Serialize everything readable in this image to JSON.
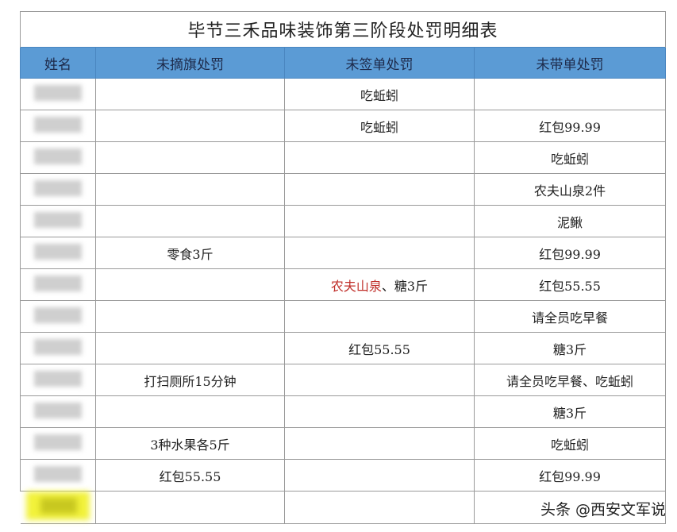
{
  "title": "毕节三禾品味装饰第三阶段处罚明细表",
  "columns": [
    "姓名",
    "未摘旗处罚",
    "未签单处罚",
    "未带单处罚"
  ],
  "rows": [
    [
      "",
      "",
      "吃蚯蚓",
      ""
    ],
    [
      "",
      "",
      "吃蚯蚓",
      "红包99.99"
    ],
    [
      "",
      "",
      "",
      "吃蚯蚓"
    ],
    [
      "",
      "",
      "",
      "农夫山泉2件"
    ],
    [
      "",
      "",
      "",
      "泥鳅"
    ],
    [
      "",
      "零食3斤",
      "",
      "红包99.99"
    ],
    [
      "",
      "",
      "农夫山泉、糖3斤",
      "红包55.55"
    ],
    [
      "",
      "",
      "",
      "请全员吃早餐"
    ],
    [
      "",
      "",
      "红包55.55",
      "糖3斤"
    ],
    [
      "",
      "打扫厕所15分钟",
      "",
      "请全员吃早餐、吃蚯蚓"
    ],
    [
      "",
      "",
      "",
      "糖3斤"
    ],
    [
      "",
      "3种水果各5斤",
      "",
      "吃蚯蚓"
    ],
    [
      "",
      "红包55.55",
      "",
      "红包99.99"
    ],
    [
      "",
      "",
      "",
      ""
    ]
  ],
  "highlight_red_text": "农夫山泉",
  "highlight_red_suffix": "、糖3斤",
  "watermark": "头条 @西安文军说",
  "colors": {
    "header_bg": "#5b9bd5",
    "red_text": "#c0302b",
    "highlight": "#f2f23a"
  }
}
